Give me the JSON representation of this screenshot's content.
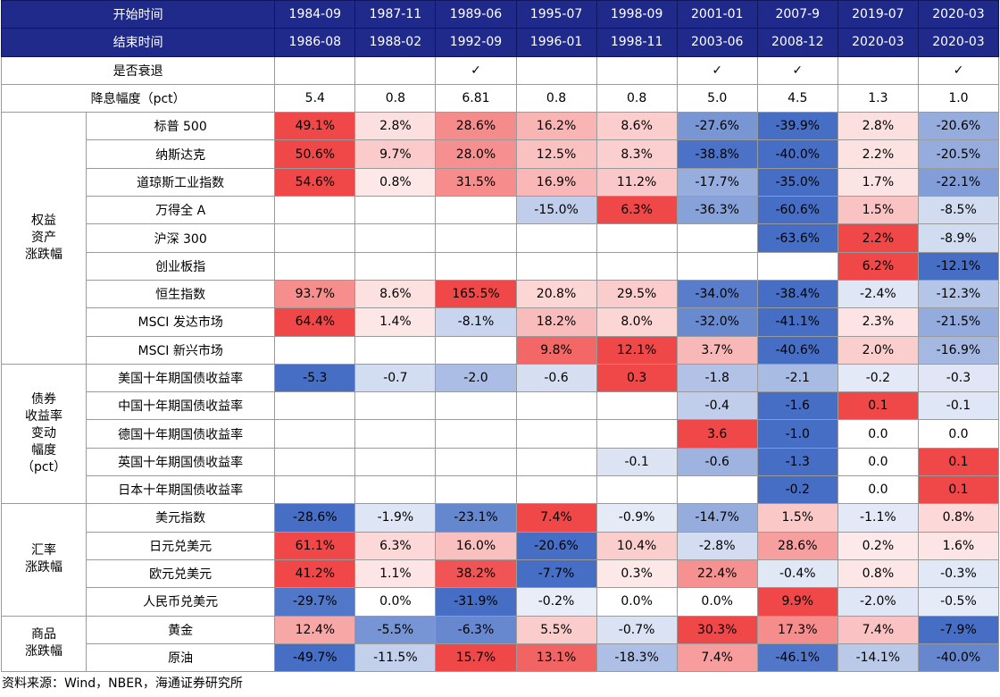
{
  "table": {
    "header": {
      "start_label": "开始时间",
      "end_label": "结束时间",
      "start": [
        "1984-09",
        "1987-11",
        "1989-06",
        "1995-07",
        "1998-09",
        "2001-01",
        "2007-9",
        "2019-07",
        "2020-03"
      ],
      "end": [
        "1986-08",
        "1988-02",
        "1992-09",
        "1996-01",
        "1998-11",
        "2003-06",
        "2008-12",
        "2020-03",
        "2020-03"
      ]
    },
    "recession": {
      "label": "是否衰退",
      "values": [
        null,
        null,
        "✓",
        null,
        null,
        "✓",
        "✓",
        null,
        "✓"
      ]
    },
    "cut": {
      "label": "降息幅度（pct）",
      "values": [
        "5.4",
        "0.8",
        "6.81",
        "0.8",
        "0.8",
        "5.0",
        "4.5",
        "1.3",
        "1.0"
      ]
    },
    "groups": [
      {
        "label_lines": [
          "权益",
          "资产",
          "涨跌幅"
        ],
        "rows": [
          {
            "label": "标普 500",
            "values": [
              "49.1%",
              "2.8%",
              "28.6%",
              "16.2%",
              "8.6%",
              "-27.6%",
              "-39.9%",
              "2.8%",
              "-20.6%"
            ]
          },
          {
            "label": "纳斯达克",
            "values": [
              "50.6%",
              "9.7%",
              "28.0%",
              "12.5%",
              "8.3%",
              "-38.8%",
              "-40.0%",
              "2.2%",
              "-20.5%"
            ]
          },
          {
            "label": "道琼斯工业指数",
            "values": [
              "54.6%",
              "0.8%",
              "31.5%",
              "16.9%",
              "11.2%",
              "-17.7%",
              "-35.0%",
              "1.7%",
              "-22.1%"
            ]
          },
          {
            "label": "万得全 A",
            "values": [
              null,
              null,
              null,
              "-15.0%",
              "6.3%",
              "-36.3%",
              "-60.6%",
              "1.5%",
              "-8.5%"
            ]
          },
          {
            "label": "沪深 300",
            "values": [
              null,
              null,
              null,
              null,
              null,
              null,
              "-63.6%",
              "2.2%",
              "-8.9%"
            ]
          },
          {
            "label": "创业板指",
            "values": [
              null,
              null,
              null,
              null,
              null,
              null,
              null,
              "6.2%",
              "-12.1%"
            ]
          },
          {
            "label": "恒生指数",
            "values": [
              "93.7%",
              "8.6%",
              "165.5%",
              "20.8%",
              "29.5%",
              "-34.0%",
              "-38.4%",
              "-2.4%",
              "-12.3%"
            ]
          },
          {
            "label": "MSCI 发达市场",
            "values": [
              "64.4%",
              "1.4%",
              "-8.1%",
              "18.2%",
              "8.0%",
              "-32.0%",
              "-41.1%",
              "2.3%",
              "-21.5%"
            ]
          },
          {
            "label": "MSCI 新兴市场",
            "values": [
              null,
              null,
              null,
              "9.8%",
              "12.1%",
              "3.7%",
              "-40.6%",
              "2.0%",
              "-16.9%"
            ]
          }
        ]
      },
      {
        "label_lines": [
          "债券",
          "收益率",
          "变动",
          "幅度",
          "（pct）"
        ],
        "rows": [
          {
            "label": "美国十年期国债收益率",
            "values": [
              "-5.3",
              "-0.7",
              "-2.0",
              "-0.6",
              "0.3",
              "-1.8",
              "-2.1",
              "-0.2",
              "-0.3"
            ]
          },
          {
            "label": "中国十年期国债收益率",
            "values": [
              null,
              null,
              null,
              null,
              null,
              "-0.4",
              "-1.6",
              "0.1",
              "-0.1"
            ]
          },
          {
            "label": "德国十年期国债收益率",
            "values": [
              null,
              null,
              null,
              null,
              null,
              "3.6",
              "-1.0",
              "0.0",
              "0.0"
            ]
          },
          {
            "label": "英国十年期国债收益率",
            "values": [
              null,
              null,
              null,
              null,
              "-0.1",
              "-0.6",
              "-1.3",
              "0.0",
              "0.1"
            ]
          },
          {
            "label": "日本十年期国债收益率",
            "values": [
              null,
              null,
              null,
              null,
              null,
              null,
              "-0.2",
              "0.0",
              "0.1"
            ]
          }
        ]
      },
      {
        "label_lines": [
          "汇率",
          "涨跌幅"
        ],
        "rows": [
          {
            "label": "美元指数",
            "values": [
              "-28.6%",
              "-1.9%",
              "-23.1%",
              "7.4%",
              "-0.9%",
              "-14.7%",
              "1.5%",
              "-1.1%",
              "0.8%"
            ]
          },
          {
            "label": "日元兑美元",
            "values": [
              "61.1%",
              "6.3%",
              "16.0%",
              "-20.6%",
              "10.4%",
              "-2.8%",
              "28.6%",
              "0.2%",
              "1.6%"
            ]
          },
          {
            "label": "欧元兑美元",
            "values": [
              "41.2%",
              "1.1%",
              "38.2%",
              "-7.7%",
              "0.3%",
              "22.4%",
              "-0.4%",
              "0.8%",
              "-0.3%"
            ]
          },
          {
            "label": "人民币兑美元",
            "values": [
              "-29.7%",
              "0.0%",
              "-31.9%",
              "-0.2%",
              "0.0%",
              "0.0%",
              "9.9%",
              "-2.0%",
              "-0.5%"
            ]
          }
        ]
      },
      {
        "label_lines": [
          "商品",
          "涨跌幅"
        ],
        "rows": [
          {
            "label": "黄金",
            "values": [
              "12.4%",
              "-5.5%",
              "-6.3%",
              "5.5%",
              "-0.7%",
              "30.3%",
              "17.3%",
              "7.4%",
              "-7.9%"
            ]
          },
          {
            "label": "原油",
            "values": [
              "-49.7%",
              "-11.5%",
              "15.7%",
              "13.1%",
              "-18.3%",
              "7.4%",
              "-46.1%",
              "-14.1%",
              "-40.0%"
            ]
          }
        ]
      }
    ],
    "source": "资料来源：Wind，NBER，海通证券研究所"
  }
}
